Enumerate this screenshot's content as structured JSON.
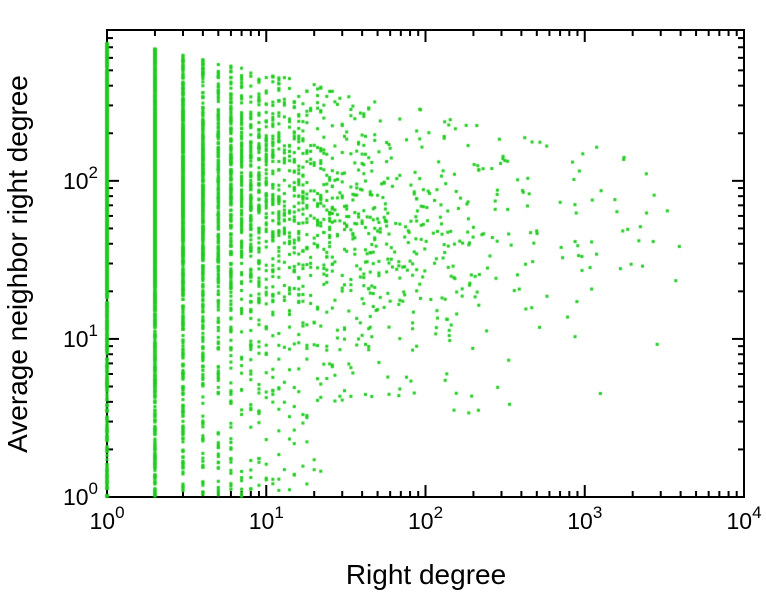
{
  "chart_data": {
    "type": "scatter",
    "title": "",
    "xlabel": "Right degree",
    "ylabel": "Average neighbor right degree",
    "x_scale": "log",
    "y_scale": "log",
    "xlim": [
      1,
      10000
    ],
    "ylim": [
      1,
      900
    ],
    "grid": false,
    "legend": "none",
    "minor_ticks": true,
    "x_ticks": [
      {
        "value": 1,
        "base": "10",
        "exponent": "0"
      },
      {
        "value": 10,
        "base": "10",
        "exponent": "1"
      },
      {
        "value": 100,
        "base": "10",
        "exponent": "2"
      },
      {
        "value": 1000,
        "base": "10",
        "exponent": "3"
      },
      {
        "value": 10000,
        "base": "10",
        "exponent": "4"
      }
    ],
    "y_ticks": [
      {
        "value": 1,
        "base": "10",
        "exponent": "0"
      },
      {
        "value": 10,
        "base": "10",
        "exponent": "1"
      },
      {
        "value": 100,
        "base": "10",
        "exponent": "2"
      }
    ],
    "marker": {
      "shape": "square",
      "size": 3,
      "color": "#1ecb1e"
    },
    "points_spec": {
      "comment": "Procedural model of the depicted point cloud: dense vertical columns at integer x for small right degree, thinning to a sparse cloud out to x≈4000; y spans 1–700 with mass concentrated between ~30 and ~300 and a slowly declining upper envelope.",
      "seed": 1337,
      "n": 5200,
      "x_pareto_alpha": 1.7,
      "x_max": 4000,
      "y_mu_intercept": 2.1,
      "y_mu_slope": -0.15,
      "y_sigma": 0.4,
      "low_tail_fraction": 0.2,
      "low_tail_max_log10x": 1.35,
      "mid_tail_fraction": 0.06,
      "mid_tail_max_log10x": 2.6,
      "y_log_cap_intercept": 2.9,
      "y_log_cap_slope": -0.22,
      "y_log_cap_abs": 2.87
    },
    "description": "Log-log scatter plot of average neighbor right degree versus right degree; bright green points, black frame with inward-pointing major and minor ticks mirrored on all four sides."
  }
}
